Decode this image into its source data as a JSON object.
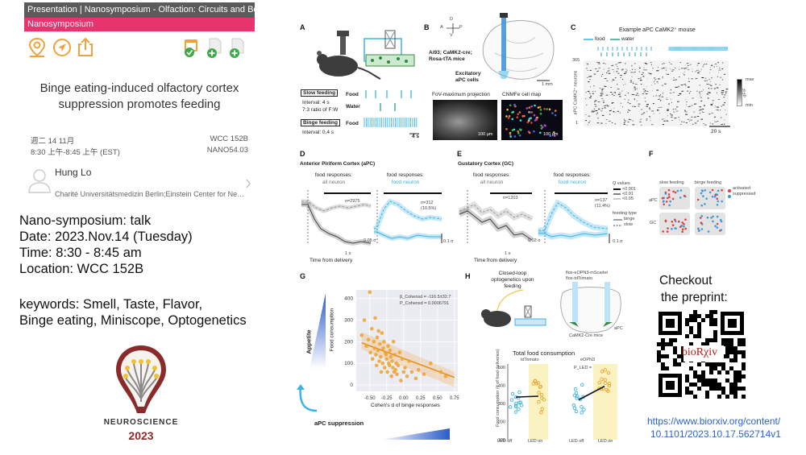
{
  "app": {
    "title_bar": "Presentation | Nanosymposium - Olfaction: Circuits and Behavior",
    "session_bar": "Nanosymposium",
    "talk_title": "Binge eating-induced olfactory cortex suppression promotes feeding",
    "date_line": "週二 14 11月",
    "time_line": "8:30 上午-8:45 上午 (EST)",
    "room": "WCC 152B",
    "code": "NANO54.03",
    "presenter_name": "Hung Lo",
    "presenter_affiliation": "Charité Universitätsmedizin Berlin;Einstein Center for Neurosci..."
  },
  "info": {
    "line1": "Nano-symposium: talk",
    "line2": "Date: 2023.Nov.14 (Tuesday)",
    "line3": "Time: 8:30 - 8:45 am",
    "line4": "Location: WCC 152B",
    "line5": "keywords: Smell, Taste, Flavor,",
    "line6": "Binge eating, Miniscope, Optogenetics"
  },
  "logo": {
    "word": "NEUROSCIENCE",
    "year": "2023"
  },
  "figure": {
    "panelA": {
      "label": "A",
      "slow_feeding": "Slow feeding",
      "slow_interval": "Interval: 4 s",
      "slow_ratio": "7:3 ratio of F:W",
      "binge_feeding": "Binge feeding",
      "binge_interval": "Interval: 0.4 s",
      "food": "Food",
      "water": "Water",
      "food2": "Food",
      "scalebar": "4 s"
    },
    "panelB": {
      "label": "B",
      "axis_d": "D",
      "axis_a": "A",
      "axis_p": "P",
      "axis_v": "V",
      "mice": "Ai93; CaMK2-cre; Rosa-tTA mice",
      "cells": "Excitatory aPC cells",
      "scale": "1 mm",
      "fov": "FoV-maximum projection",
      "cnmfe": "CNMFe cell map",
      "um1": "100 µm",
      "um2": "100 µm"
    },
    "panelC": {
      "label": "C",
      "title": "Example aPC CaMK2⁺ mouse",
      "food": "food",
      "water": "water",
      "ymax": "365",
      "ymin": "1",
      "ylabel": "aPC CaMK2⁺ neurons",
      "cmax": "max",
      "cmin": "min",
      "clabel": "dF/F",
      "scale": "20 s"
    },
    "panelD": {
      "label": "D",
      "title": "Anterior Piriform Cortex (aPC)",
      "left_title": "food responses:",
      "left_sub": "all neuron",
      "right_title": "food responses:",
      "right_sub": "food neuron",
      "n_left": "n=2975",
      "n_right": "n=312",
      "n_right_pct": "(10.5%)",
      "xlabel": "Time from delivery",
      "yscale": "0.05 σ",
      "yscale2": "0.1 σ",
      "tscale": "1 s"
    },
    "panelE": {
      "label": "E",
      "title": "Gustatory Cortex (GC)",
      "left_title": "food responses:",
      "left_sub": "all neuron",
      "right_title": "food responses:",
      "right_sub": "food neuron",
      "n_left": "n=1203",
      "n_right": "n=137",
      "n_right_pct": "(11.4%)",
      "xlabel": "Time from delivery",
      "yscale": "0.02 σ",
      "yscale2": "0.1 σ",
      "tscale": "1 s",
      "q_title": "Q values",
      "q1": "<0.001",
      "q2": "<0.01",
      "q3": "<0.05",
      "ft_title": "feeding type",
      "ft1": "binge",
      "ft2": "slow"
    },
    "panelF": {
      "label": "F",
      "col1": "slow feeding",
      "col2": "binge feeding",
      "row1": "aPC",
      "row2": "GC",
      "leg1": "activated",
      "leg2": "suppressed"
    },
    "panelG": {
      "label": "G",
      "ylabel": "Food consumption",
      "xlabel": "Cohen's d of binge responses",
      "beta": "β_Cohensd = -116.5±32.7",
      "p": "P_Cohensd = 0.0006791",
      "appetite": "Appetite",
      "suppression": "aPC suppression"
    },
    "panelH": {
      "label": "H",
      "opto": "Closed-loop optogenetics upon feeding",
      "construct1": "flox-eOPN3-mScarlet",
      "construct2": "flox-tdTomato",
      "mice": "CaMK2-Cre mice",
      "apc": "aPC",
      "total": "Total food consumption",
      "g1": "tdTomato",
      "g2": "eOPN3",
      "p": "P_LED = 0.00085",
      "ylabel": "Food consumption (# of food deliveries)",
      "ylabel2": "(# of food deliveries)",
      "x1": "LED off",
      "x2": "LED on",
      "x3": "LED off",
      "x4": "LED on"
    }
  },
  "preprint": {
    "line1": "Checkout",
    "line2": "the preprint:",
    "qr_text": "bioRχiv",
    "url1": "https://www.biorxiv.org/content/",
    "url2": "10.1101/2023.10.17.562714v1"
  },
  "chart_data": [
    {
      "type": "scatter",
      "title": "",
      "xlabel": "Cohen's d of binge responses",
      "ylabel": "Food consumption",
      "xlim": [
        -0.7,
        0.8
      ],
      "ylim": [
        -30,
        440
      ],
      "xticks": [
        "-0.50",
        "-0.25",
        "0.00",
        "0.25",
        "0.50",
        "0.75"
      ],
      "yticks": [
        "0",
        "100",
        "200",
        "300",
        "400"
      ],
      "x": [
        -0.62,
        -0.58,
        -0.55,
        -0.52,
        -0.5,
        -0.49,
        -0.47,
        -0.46,
        -0.44,
        -0.43,
        -0.42,
        -0.41,
        -0.4,
        -0.39,
        -0.38,
        -0.37,
        -0.36,
        -0.35,
        -0.34,
        -0.33,
        -0.32,
        -0.31,
        -0.3,
        -0.29,
        -0.28,
        -0.27,
        -0.26,
        -0.25,
        -0.24,
        -0.23,
        -0.22,
        -0.21,
        -0.2,
        -0.19,
        -0.18,
        -0.17,
        -0.16,
        -0.15,
        -0.14,
        -0.13,
        -0.12,
        -0.11,
        -0.1,
        -0.08,
        -0.06,
        -0.04,
        -0.02,
        0.0,
        0.02,
        0.05,
        0.08,
        0.12,
        0.18,
        0.22,
        0.3,
        0.4,
        0.55,
        0.62
      ],
      "y": [
        230,
        300,
        180,
        210,
        430,
        150,
        260,
        120,
        200,
        170,
        310,
        140,
        90,
        220,
        160,
        250,
        110,
        190,
        130,
        60,
        240,
        100,
        170,
        200,
        80,
        150,
        140,
        120,
        60,
        180,
        100,
        90,
        160,
        130,
        40,
        110,
        80,
        200,
        60,
        140,
        70,
        100,
        50,
        90,
        150,
        20,
        120,
        60,
        80,
        40,
        110,
        60,
        30,
        70,
        50,
        100,
        60,
        40
      ],
      "fit": {
        "x": [
          -0.62,
          0.75
        ],
        "y": [
          195,
          35
        ]
      }
    },
    {
      "type": "scatter",
      "title": "Total food consumption",
      "series": [
        {
          "name": "tdTomato",
          "categories": [
            "LED off",
            "LED on"
          ],
          "mean": [
            335,
            340
          ]
        },
        {
          "name": "eOPN3",
          "categories": [
            "LED off",
            "LED on"
          ],
          "mean": [
            320,
            395
          ]
        }
      ],
      "ylabel": "Food consumption (# of food deliveries)",
      "ylim": [
        100,
        500
      ],
      "yticks": [
        "100",
        "200",
        "300",
        "400",
        "500"
      ]
    }
  ]
}
